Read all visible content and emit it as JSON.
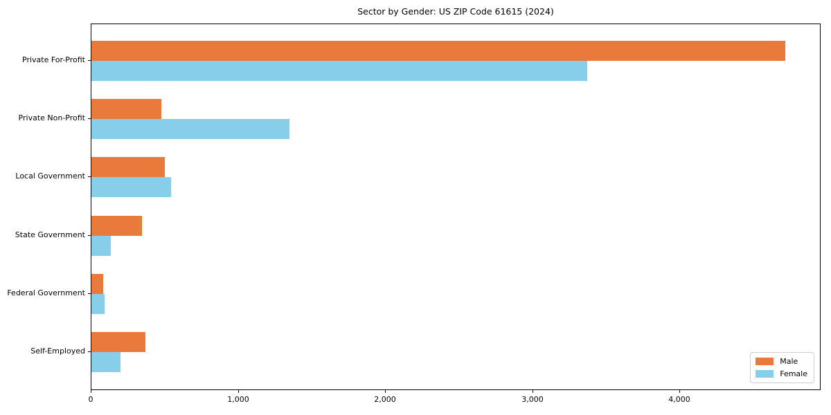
{
  "chart_data": {
    "type": "bar",
    "orientation": "horizontal",
    "title": "Sector by Gender: US ZIP Code 61615 (2024)",
    "xlabel": "",
    "ylabel": "",
    "categories": [
      "Private For-Profit",
      "Private Non-Profit",
      "Local Government",
      "State Government",
      "Federal Government",
      "Self-Employed"
    ],
    "series": [
      {
        "name": "Male",
        "color": "#e97a3c",
        "values": [
          4713,
          477,
          499,
          343,
          78,
          365
        ]
      },
      {
        "name": "Female",
        "color": "#87ceeb",
        "values": [
          3367,
          1344,
          540,
          133,
          88,
          196
        ]
      }
    ],
    "xlim": [
      0,
      4950
    ],
    "xticks": {
      "values": [
        0,
        1000,
        2000,
        3000,
        4000
      ],
      "labels": [
        "0",
        "1,000",
        "2,000",
        "3,000",
        "4,000"
      ]
    },
    "grid": false,
    "legend": {
      "position": "lower right",
      "entries": [
        "Male",
        "Female"
      ]
    },
    "colors": {
      "frame": "#000000",
      "text": "#000000",
      "legend_border": "#cccccc",
      "background": "#ffffff"
    }
  }
}
